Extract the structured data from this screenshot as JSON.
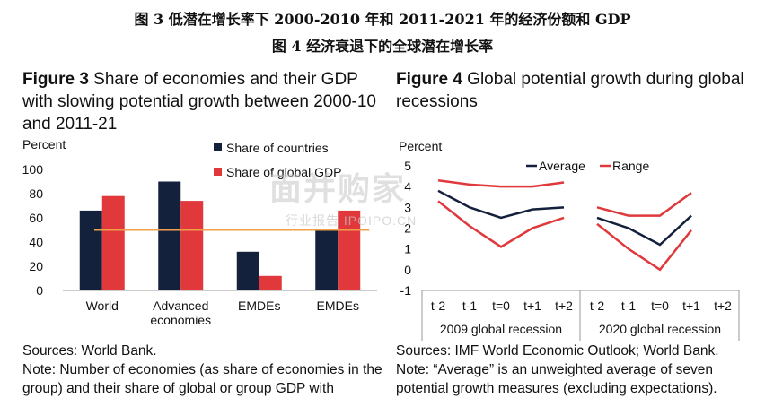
{
  "header": {
    "line1": "图 3 低潜在增长率下 2000-2010 年和 2011-2021 年的经济份额和 GDP",
    "line2": "图 4 经济衰退下的全球潜在增长率"
  },
  "fig3": {
    "title_bold": "Figure 3",
    "title_rest": " Share of economies and their GDP with slowing potential growth between 2000-10 and 2011-21",
    "sources": "Sources: World Bank.",
    "note": "Note: Number of economies (as share of economies in the group) and their share of global or group GDP with"
  },
  "fig4": {
    "title_bold": "Figure 4",
    "title_rest": " Global potential growth during global recessions",
    "sources": "Sources: IMF World Economic Outlook; World Bank.",
    "note": "Note: “Average” is an unweighted average of seven potential growth measures (excluding expectations)."
  },
  "watermark": {
    "main": "面并购家",
    "sub": "行业报告 IPOIPO.CN"
  },
  "chart_data": [
    {
      "type": "bar",
      "ylabel": "Percent",
      "ylim": [
        0,
        100
      ],
      "yticks": [
        0,
        20,
        40,
        60,
        80,
        100
      ],
      "categories": [
        "World",
        "Advanced economies",
        "EMDEs",
        "EMDEs"
      ],
      "category_lines": [
        [
          "World"
        ],
        [
          "Advanced",
          "economies"
        ],
        [
          "EMDEs"
        ],
        [
          "EMDEs"
        ]
      ],
      "series": [
        {
          "name": "Share of countries",
          "color": "#14213d",
          "values": [
            66,
            90,
            32,
            50
          ]
        },
        {
          "name": "Share of global GDP",
          "color": "#e0383b",
          "values": [
            78,
            74,
            12,
            66
          ]
        }
      ],
      "reference_line": {
        "value": 50,
        "color": "#f0a04b"
      },
      "legend": "top-right",
      "grid": false
    },
    {
      "type": "line",
      "ylabel": "Percent",
      "ylim": [
        -1,
        5
      ],
      "yticks": [
        -1,
        0,
        1,
        2,
        3,
        4,
        5
      ],
      "groups": [
        {
          "label": "2009 global recession",
          "x": [
            "t-2",
            "t-1",
            "t=0",
            "t+1",
            "t+2"
          ]
        },
        {
          "label": "2020 global recession",
          "x": [
            "t-2",
            "t-1",
            "t=0",
            "t+1",
            "t+2"
          ]
        }
      ],
      "series": [
        {
          "name": "Average",
          "color": "#14213d",
          "style": "solid",
          "values": [
            [
              3.8,
              3.0,
              2.5,
              2.9,
              3.0
            ],
            [
              2.5,
              2.0,
              1.2,
              2.6
            ]
          ]
        },
        {
          "name": "Range",
          "color": "#e0383b",
          "style": "solid",
          "upper": [
            [
              4.3,
              4.1,
              4.0,
              4.0,
              4.2
            ],
            [
              3.0,
              2.6,
              2.6,
              3.7
            ]
          ],
          "lower": [
            [
              3.3,
              2.1,
              1.1,
              2.0,
              2.5
            ],
            [
              2.2,
              1.0,
              0.0,
              1.9
            ]
          ]
        }
      ],
      "legend": "top",
      "grid": false
    }
  ]
}
